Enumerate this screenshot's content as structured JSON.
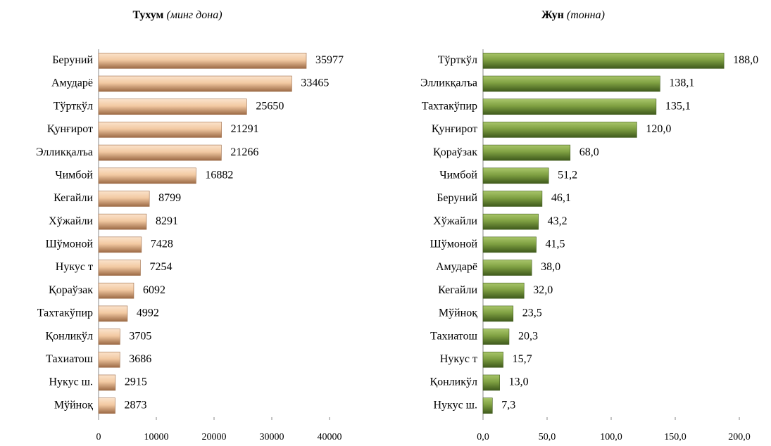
{
  "chart_data": [
    {
      "type": "bar",
      "title": "Тухум",
      "subtitle": "(минг дона)",
      "categories": [
        "Беруний",
        "Амударё",
        "Тўрткўл",
        "Қунғирот",
        "Элликқалъа",
        "Чимбой",
        "Кегайли",
        "Хўжайли",
        "Шўмоной",
        "Нукус т",
        "Қораўзак",
        "Тахтакўпир",
        "Қонликўл",
        "Тахиатош",
        "Нукус ш.",
        "Мўйноқ"
      ],
      "values": [
        35977,
        33465,
        25650,
        21291,
        21266,
        16882,
        8799,
        8291,
        7428,
        7254,
        6092,
        4992,
        3705,
        3686,
        2915,
        2873
      ],
      "color": "#e8b48a",
      "xlim": [
        0,
        40000
      ],
      "xticks": [
        0,
        10000,
        20000,
        30000,
        40000
      ]
    },
    {
      "type": "bar",
      "title": "Жун",
      "subtitle": "(тонна)",
      "categories": [
        "Тўрткўл",
        "Элликқалъа",
        "Тахтакўпир",
        "Қунғирот",
        "Қораўзак",
        "Чимбой",
        "Беруний",
        "Хўжайли",
        "Шўмоной",
        "Амударё",
        "Кегайли",
        "Мўйноқ",
        "Тахиатош",
        "Нукус т",
        "Қонликўл",
        "Нукус ш."
      ],
      "values": [
        188.0,
        138.1,
        135.1,
        120.0,
        68.0,
        51.2,
        46.1,
        43.2,
        41.5,
        38.0,
        32.0,
        23.5,
        20.3,
        15.7,
        13.0,
        7.3
      ],
      "value_labels": [
        "188,0",
        "138,1",
        "135,1",
        "120,0",
        "68,0",
        "51,2",
        "46,1",
        "43,2",
        "41,5",
        "38,0",
        "32,0",
        "23,5",
        "20,3",
        "15,7",
        "13,0",
        "7,3"
      ],
      "color": "#7a9a3c",
      "xlim": [
        0,
        200
      ],
      "xticks": [
        {
          "value": 0,
          "label": "0,0"
        },
        {
          "value": 50,
          "label": "50,0"
        },
        {
          "value": 100,
          "label": "100,0"
        },
        {
          "value": 150,
          "label": "150,0"
        },
        {
          "value": 200,
          "label": "200,0"
        }
      ]
    }
  ]
}
